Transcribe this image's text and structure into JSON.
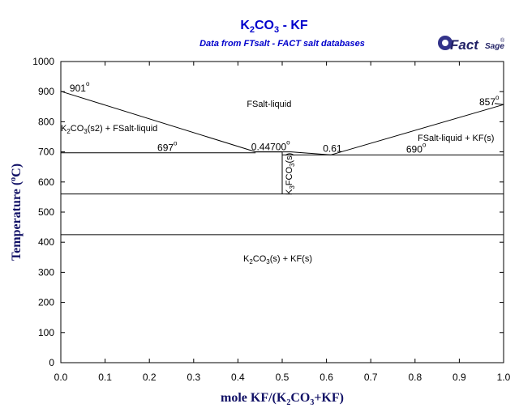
{
  "chart_data": {
    "type": "line",
    "title": "K2CO3 - KF",
    "title_parts": {
      "a": "K",
      "b": "2",
      "c": "CO",
      "d": "3",
      "e": " - KF"
    },
    "subtitle": "Data from FTsalt - FACT salt databases",
    "logo": {
      "main": "Fact",
      "small": "Sage",
      "reg": "®"
    },
    "xlabel": "mole KF/(K2CO3+KF)",
    "xlabel_parts": {
      "a": "mole KF/(K",
      "b": "2",
      "c": "CO",
      "d": "3",
      "e": "+KF)"
    },
    "ylabel": "Temperature (°C)",
    "ylabel_parts": {
      "a": "Temperature (",
      "b": "o",
      "c": "C)"
    },
    "xlim": [
      0,
      1
    ],
    "ylim": [
      0,
      1000
    ],
    "x_ticks": [
      "0.0",
      "0.1",
      "0.2",
      "0.3",
      "0.4",
      "0.5",
      "0.6",
      "0.7",
      "0.8",
      "0.9",
      "1.0"
    ],
    "y_ticks": [
      "0",
      "100",
      "200",
      "300",
      "400",
      "500",
      "600",
      "700",
      "800",
      "900",
      "1000"
    ],
    "grid": false,
    "series": [
      {
        "id": "liquidus-left",
        "points": [
          [
            0.0,
            901
          ],
          [
            0.44,
            700
          ]
        ]
      },
      {
        "id": "liquidus-mid",
        "points": [
          [
            0.44,
            700
          ],
          [
            0.52,
            700
          ],
          [
            0.61,
            690
          ]
        ]
      },
      {
        "id": "liquidus-right",
        "points": [
          [
            0.61,
            690
          ],
          [
            1.0,
            857
          ]
        ]
      },
      {
        "id": "end-left",
        "points": [
          [
            0.0,
            901
          ],
          [
            0.0,
            905
          ]
        ]
      },
      {
        "id": "end-right",
        "points": [
          [
            1.0,
            857
          ],
          [
            0.98,
            861
          ]
        ]
      },
      {
        "id": "eutectic-697",
        "points": [
          [
            0.0,
            697
          ],
          [
            0.44,
            697
          ]
        ]
      },
      {
        "id": "peritectic-700",
        "points": [
          [
            0.44,
            700
          ],
          [
            0.5,
            700
          ]
        ]
      },
      {
        "id": "eutectic-690",
        "points": [
          [
            0.5,
            690
          ],
          [
            1.0,
            690
          ]
        ]
      },
      {
        "id": "compound-k3fco3",
        "points": [
          [
            0.5,
            700
          ],
          [
            0.5,
            560
          ]
        ]
      },
      {
        "id": "transition-560",
        "points": [
          [
            0.0,
            560
          ],
          [
            1.0,
            560
          ]
        ]
      },
      {
        "id": "transition-425",
        "points": [
          [
            0.0,
            425
          ],
          [
            1.0,
            425
          ]
        ]
      }
    ],
    "annotations": [
      {
        "id": "label-901",
        "text": "901",
        "sup": "o",
        "x": 0.02,
        "y": 900
      },
      {
        "id": "label-857",
        "text": "857",
        "sup": "o",
        "x": 0.945,
        "y": 855
      },
      {
        "id": "label-697",
        "text": "697",
        "sup": "o",
        "x": 0.218,
        "y": 703
      },
      {
        "id": "label-690",
        "text": "690",
        "sup": "o",
        "x": 0.78,
        "y": 698
      },
      {
        "id": "label-0447",
        "text": "0.44700",
        "sup": "o",
        "x": 0.43,
        "y": 705
      },
      {
        "id": "label-061",
        "text": "0.61",
        "sup": "",
        "x": 0.592,
        "y": 700
      },
      {
        "id": "region-liquid",
        "text": "FSalt-liquid",
        "sup": "",
        "x": 0.42,
        "y": 850
      }
    ],
    "region_labels": {
      "left": {
        "a": "K",
        "b": "2",
        "c": "CO",
        "d": "3",
        "e": "(s2) + FSalt-liquid"
      },
      "right": "FSalt-liquid + KF(s)",
      "bottom": {
        "a": "K",
        "b": "2",
        "c": "CO",
        "d": "3",
        "e": "(s) + KF(s)"
      },
      "compound": {
        "a": "K",
        "b": "3",
        "c": "FCO",
        "d": "3",
        "e": "(s)"
      }
    }
  }
}
